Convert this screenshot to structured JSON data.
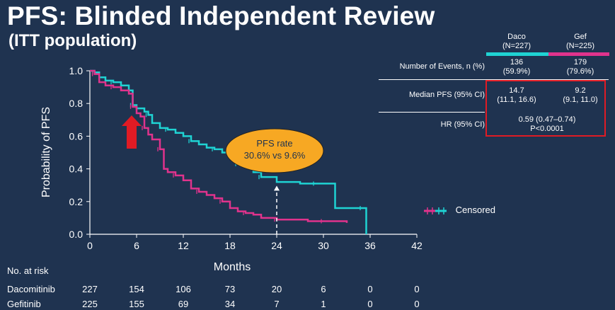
{
  "title": "PFS: Blinded Independent Review",
  "subtitle": "(ITT population)",
  "table": {
    "columns": [
      {
        "name": "Daco",
        "n": "(N=227)",
        "color": "#1fd3d3"
      },
      {
        "name": "Gef",
        "n": "(N=225)",
        "color": "#e0338c"
      }
    ],
    "rows": [
      {
        "label": "Number of Events, n (%)",
        "daco": [
          "136",
          "(59.9%)"
        ],
        "gef": [
          "179",
          "(79.6%)"
        ]
      },
      {
        "label": "Median PFS (95% CI)",
        "daco": [
          "14.7",
          "(11.1, 16.6)"
        ],
        "gef": [
          "9.2",
          "(9.1, 11.0)"
        ]
      },
      {
        "label": "HR (95% CI)",
        "combined": [
          "0.59 (0.47–0.74)",
          "P<0.0001"
        ]
      }
    ],
    "highlight_color": "#e01b24"
  },
  "annotation": {
    "line1": "PFS rate",
    "line2": "30.6% vs 9.6%",
    "fill": "#f7a823"
  },
  "legend": {
    "label": "Censored"
  },
  "at_risk": {
    "header": "No. at risk",
    "rows": [
      {
        "label": "Dacomitinib",
        "values": [
          "227",
          "154",
          "106",
          "73",
          "20",
          "6",
          "0",
          "0"
        ]
      },
      {
        "label": "Gefitinib",
        "values": [
          "225",
          "155",
          "69",
          "34",
          "7",
          "1",
          "0",
          "0"
        ]
      }
    ]
  },
  "chart_data": {
    "type": "line",
    "title": "PFS: Blinded Independent Review",
    "xlabel": "Months",
    "ylabel": "Probability of PFS",
    "xlim": [
      0,
      42
    ],
    "ylim": [
      0,
      1.0
    ],
    "xticks": [
      0,
      6,
      12,
      18,
      24,
      30,
      36,
      42
    ],
    "yticks": [
      0.0,
      0.2,
      0.4,
      0.6,
      0.8,
      1.0
    ],
    "grid": false,
    "series": [
      {
        "name": "Dacomitinib",
        "color": "#1fd3d3",
        "x": [
          0,
          0.6,
          1.2,
          2,
          3,
          4,
          5,
          5.5,
          6,
          7,
          7.5,
          8,
          9,
          10,
          11,
          12,
          13,
          14,
          15,
          16,
          17,
          18,
          19,
          20,
          21,
          22,
          24,
          27,
          29,
          31,
          31.5,
          35,
          35.5
        ],
        "y": [
          1.0,
          0.99,
          0.96,
          0.94,
          0.93,
          0.91,
          0.88,
          0.79,
          0.77,
          0.75,
          0.73,
          0.68,
          0.65,
          0.64,
          0.62,
          0.6,
          0.57,
          0.55,
          0.53,
          0.52,
          0.5,
          0.47,
          0.43,
          0.41,
          0.38,
          0.35,
          0.32,
          0.31,
          0.31,
          0.31,
          0.16,
          0.16,
          0.0
        ]
      },
      {
        "name": "Gefitinib",
        "color": "#e0338c",
        "x": [
          0,
          0.6,
          1.2,
          2,
          3,
          4,
          5,
          5.5,
          6,
          6.5,
          7,
          7.5,
          8,
          9,
          9.5,
          10,
          11,
          12,
          13,
          14,
          15,
          16,
          17,
          18,
          19,
          20,
          21,
          22,
          24,
          26,
          28,
          30,
          33
        ],
        "y": [
          1.0,
          0.98,
          0.93,
          0.91,
          0.9,
          0.88,
          0.86,
          0.78,
          0.74,
          0.72,
          0.65,
          0.61,
          0.58,
          0.52,
          0.4,
          0.38,
          0.36,
          0.33,
          0.28,
          0.26,
          0.24,
          0.22,
          0.2,
          0.16,
          0.14,
          0.13,
          0.12,
          0.1,
          0.09,
          0.09,
          0.08,
          0.08,
          0.07
        ]
      }
    ]
  }
}
